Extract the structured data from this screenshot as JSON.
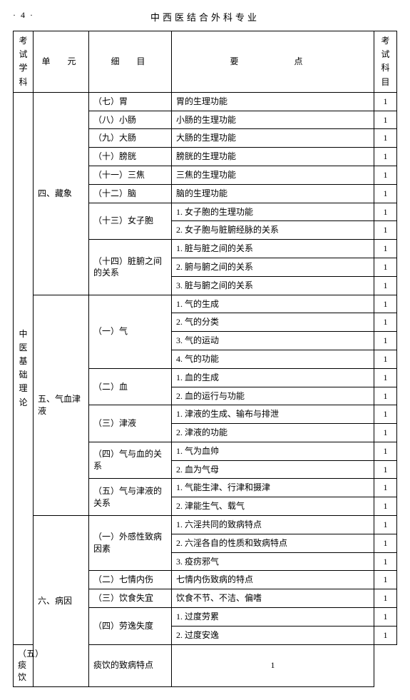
{
  "header": {
    "page_number": "· 4 ·",
    "title": "中西医结合外科专业"
  },
  "columns": {
    "c1": "考试\n学科",
    "c2": "单　元",
    "c3": "细　目",
    "c4": "要　　点",
    "c5": "考试\n科目"
  },
  "subject_label": "中\n医\n基\n础\n理\n论",
  "units": {
    "u4": "四、藏象",
    "u5": "五、气血津液",
    "u6": "六、病因"
  },
  "details": {
    "d7": "（七）胃",
    "d8": "（八）小肠",
    "d9": "（九）大肠",
    "d10": "（十）膀胱",
    "d11": "（十一）三焦",
    "d12": "（十二）脑",
    "d13": "（十三）女子胞",
    "d14": "（十四）脏腑之间的关系",
    "d_qi": "（一）气",
    "d_xue": "（二）血",
    "d_jin": "（三）津液",
    "d_qx": "（四）气与血的关系",
    "d_qj": "（五）气与津液的关系",
    "d_wg": "（一）外感性致病因素",
    "d_qq": "（二）七情内伤",
    "d_ys": "（三）饮食失宜",
    "d_ly": "（四）劳逸失度",
    "d_ty": "（五）痰饮"
  },
  "points": {
    "p7": "胃的生理功能",
    "p8": "小肠的生理功能",
    "p9": "大肠的生理功能",
    "p10": "膀胱的生理功能",
    "p11": "三焦的生理功能",
    "p12": "脑的生理功能",
    "p13a": "1. 女子胞的生理功能",
    "p13b": "2. 女子胞与脏腑经脉的关系",
    "p14a": "1. 脏与脏之间的关系",
    "p14b": "2. 腑与腑之间的关系",
    "p14c": "3. 脏与腑之间的关系",
    "pq1": "1. 气的生成",
    "pq2": "2. 气的分类",
    "pq3": "3. 气的运动",
    "pq4": "4. 气的功能",
    "px1": "1. 血的生成",
    "px2": "2. 血的运行与功能",
    "pj1": "1. 津液的生成、输布与排泄",
    "pj2": "2. 津液的功能",
    "pqx1": "1. 气为血帅",
    "pqx2": "2. 血为气母",
    "pqj1": "1. 气能生津、行津和摄津",
    "pqj2": "2. 津能生气、载气",
    "pwg1": "1. 六淫共同的致病特点",
    "pwg2": "2. 六淫各自的性质和致病特点",
    "pwg3": "3. 疫疠邪气",
    "pqq": "七情内伤致病的特点",
    "pys": "饮食不节、不洁、偏嗜",
    "ply1": "1. 过度劳累",
    "ply2": "2. 过度安逸",
    "pty": "痰饮的致病特点"
  },
  "kemu": "1"
}
